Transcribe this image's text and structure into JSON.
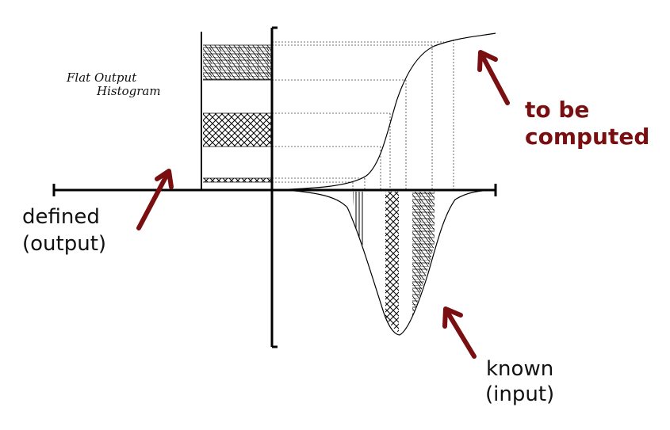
{
  "diagram": {
    "histogram_title_line1": "Flat Output",
    "histogram_title_line2": "Histogram",
    "label_defined_line1": "defined",
    "label_defined_line2": "(output)",
    "label_computed_line1": "to be",
    "label_computed_line2": "computed",
    "label_known_line1": "known",
    "label_known_line2": "(input)",
    "arrow_color": "#7a0f12",
    "line_color": "#000000"
  }
}
